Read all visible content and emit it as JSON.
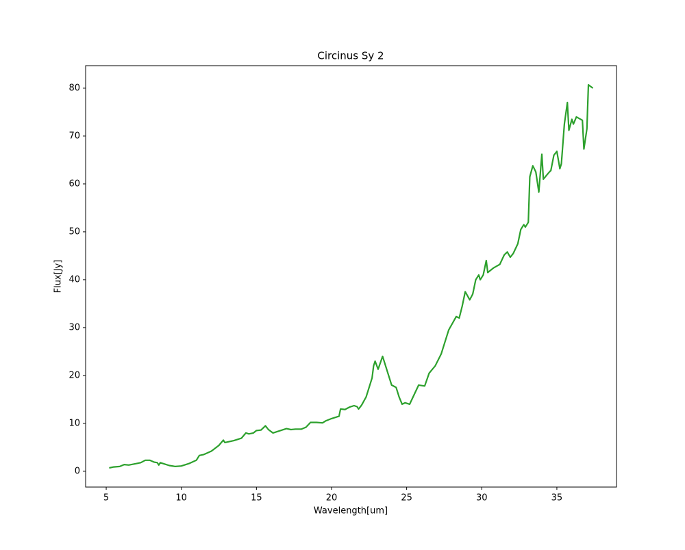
{
  "chart_data": {
    "type": "line",
    "title": "Circinus Sy 2",
    "x_label": "Wavelength[um]",
    "y_label": "Flux[Jy]",
    "color": "#2ca02c",
    "x": [
      5.2,
      5.5,
      5.9,
      6.2,
      6.5,
      7.0,
      7.3,
      7.6,
      7.9,
      8.2,
      8.4,
      8.5,
      8.6,
      8.9,
      9.2,
      9.6,
      10.0,
      10.5,
      11.0,
      11.2,
      11.5,
      12.0,
      12.5,
      12.8,
      12.9,
      13.5,
      14.0,
      14.3,
      14.5,
      14.8,
      15.0,
      15.3,
      15.6,
      15.8,
      16.1,
      16.4,
      16.7,
      17.0,
      17.3,
      17.6,
      18.0,
      18.3,
      18.6,
      19.0,
      19.4,
      19.6,
      20.0,
      20.5,
      20.6,
      20.9,
      21.2,
      21.5,
      21.7,
      21.8,
      22.0,
      22.3,
      22.5,
      22.7,
      22.8,
      22.9,
      23.1,
      23.4,
      23.7,
      24.0,
      24.3,
      24.5,
      24.7,
      24.9,
      25.2,
      25.5,
      25.8,
      26.2,
      26.5,
      26.9,
      27.3,
      27.8,
      28.3,
      28.5,
      28.7,
      28.9,
      29.2,
      29.4,
      29.6,
      29.8,
      29.9,
      30.1,
      30.3,
      30.4,
      30.8,
      31.2,
      31.5,
      31.7,
      31.9,
      32.1,
      32.4,
      32.6,
      32.8,
      32.9,
      33.1,
      33.2,
      33.4,
      33.6,
      33.8,
      34.0,
      34.1,
      34.5,
      34.6,
      34.8,
      35.0,
      35.2,
      35.3,
      35.5,
      35.7,
      35.8,
      36.0,
      36.1,
      36.3,
      36.7,
      36.8,
      37.0,
      37.1,
      37.4
    ],
    "values": [
      0.7,
      0.9,
      1.0,
      1.4,
      1.3,
      1.6,
      1.8,
      2.3,
      2.3,
      1.9,
      1.8,
      1.3,
      1.8,
      1.5,
      1.2,
      1.0,
      1.1,
      1.6,
      2.3,
      3.3,
      3.5,
      4.2,
      5.4,
      6.5,
      6.0,
      6.4,
      6.9,
      8.0,
      7.8,
      8.0,
      8.5,
      8.6,
      9.5,
      8.7,
      8.0,
      8.3,
      8.6,
      8.9,
      8.7,
      8.8,
      8.8,
      9.2,
      10.2,
      10.2,
      10.1,
      10.5,
      11.0,
      11.5,
      13.0,
      12.9,
      13.4,
      13.7,
      13.5,
      13.0,
      13.8,
      15.5,
      17.5,
      19.5,
      22.0,
      23.0,
      21.3,
      24.0,
      21.0,
      18.0,
      17.5,
      15.5,
      14.0,
      14.3,
      14.0,
      16.0,
      18.0,
      17.8,
      20.5,
      22.0,
      24.5,
      29.5,
      32.3,
      32.0,
      34.5,
      37.5,
      35.8,
      37.0,
      40.0,
      41.0,
      40.0,
      41.0,
      44.0,
      41.5,
      42.5,
      43.2,
      45.2,
      45.8,
      44.7,
      45.5,
      47.5,
      50.5,
      51.5,
      51.0,
      52.0,
      61.5,
      63.8,
      62.5,
      58.3,
      66.2,
      61.0,
      62.5,
      62.8,
      66.0,
      66.8,
      63.2,
      64.2,
      72.5,
      77.0,
      71.2,
      73.5,
      72.5,
      74.0,
      73.3,
      67.3,
      71.5,
      80.7,
      80.0
    ],
    "xlim": [
      3.63,
      38.97
    ],
    "ylim": [
      -3.3,
      84.7
    ],
    "xticks": [
      5,
      10,
      15,
      20,
      25,
      30,
      35
    ],
    "yticks": [
      0,
      10,
      20,
      30,
      40,
      50,
      60,
      70,
      80
    ]
  }
}
